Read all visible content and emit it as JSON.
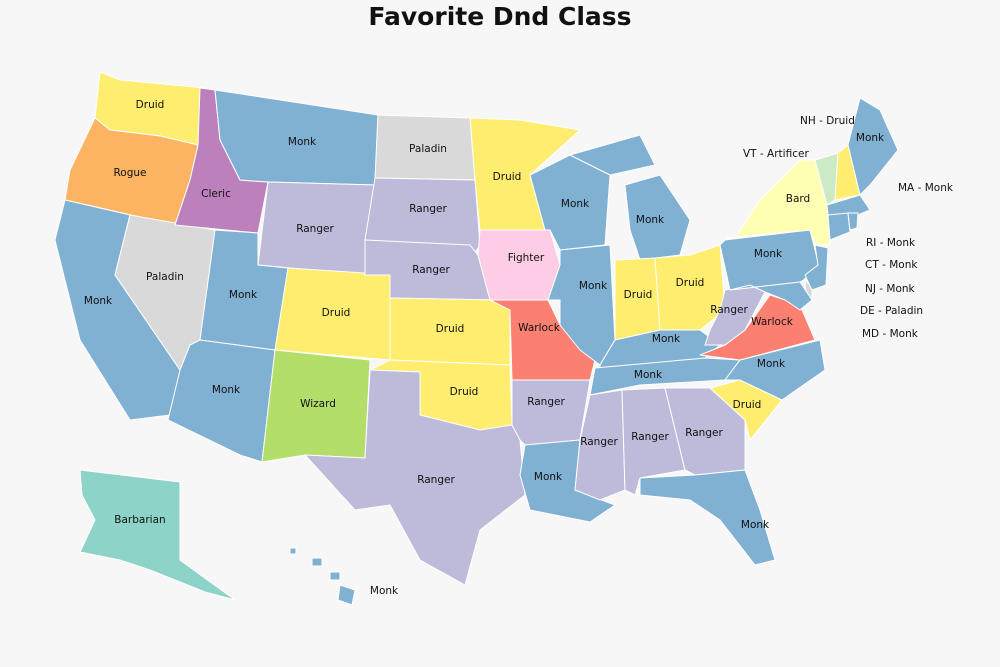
{
  "title": "Favorite Dnd Class",
  "class_colors": {
    "Monk": "#80b1d3",
    "Druid": "#ffed6f",
    "Ranger": "#bebada",
    "Paladin": "#d9d9d9",
    "Rogue": "#fdb462",
    "Cleric": "#bc80bd",
    "Fighter": "#fccde5",
    "Warlock": "#fb8072",
    "Wizard": "#b3de69",
    "Barbarian": "#8dd3c7",
    "Bard": "#ffffb3",
    "Artificer": "#ccebc5"
  },
  "states": [
    {
      "abbr": "WA",
      "class": "Druid"
    },
    {
      "abbr": "OR",
      "class": "Rogue"
    },
    {
      "abbr": "CA",
      "class": "Monk"
    },
    {
      "abbr": "NV",
      "class": "Paladin"
    },
    {
      "abbr": "ID",
      "class": "Cleric"
    },
    {
      "abbr": "MT",
      "class": "Monk"
    },
    {
      "abbr": "WY",
      "class": "Ranger"
    },
    {
      "abbr": "UT",
      "class": "Monk"
    },
    {
      "abbr": "CO",
      "class": "Druid"
    },
    {
      "abbr": "AZ",
      "class": "Monk"
    },
    {
      "abbr": "NM",
      "class": "Wizard"
    },
    {
      "abbr": "ND",
      "class": "Paladin"
    },
    {
      "abbr": "SD",
      "class": "Ranger"
    },
    {
      "abbr": "NE",
      "class": "Ranger"
    },
    {
      "abbr": "KS",
      "class": "Druid"
    },
    {
      "abbr": "OK",
      "class": "Druid"
    },
    {
      "abbr": "TX",
      "class": "Ranger"
    },
    {
      "abbr": "MN",
      "class": "Druid"
    },
    {
      "abbr": "IA",
      "class": "Fighter"
    },
    {
      "abbr": "MO",
      "class": "Warlock"
    },
    {
      "abbr": "AR",
      "class": "Ranger"
    },
    {
      "abbr": "LA",
      "class": "Monk"
    },
    {
      "abbr": "WI",
      "class": "Monk"
    },
    {
      "abbr": "IL",
      "class": "Monk"
    },
    {
      "abbr": "MI",
      "class": "Monk"
    },
    {
      "abbr": "IN",
      "class": "Druid"
    },
    {
      "abbr": "OH",
      "class": "Druid"
    },
    {
      "abbr": "KY",
      "class": "Monk"
    },
    {
      "abbr": "TN",
      "class": "Monk"
    },
    {
      "abbr": "MS",
      "class": "Ranger"
    },
    {
      "abbr": "AL",
      "class": "Ranger"
    },
    {
      "abbr": "GA",
      "class": "Ranger"
    },
    {
      "abbr": "FL",
      "class": "Monk"
    },
    {
      "abbr": "SC",
      "class": "Druid"
    },
    {
      "abbr": "NC",
      "class": "Monk"
    },
    {
      "abbr": "VA",
      "class": "Warlock"
    },
    {
      "abbr": "WV",
      "class": "Ranger"
    },
    {
      "abbr": "PA",
      "class": "Monk"
    },
    {
      "abbr": "NY",
      "class": "Bard"
    },
    {
      "abbr": "VT",
      "class": "Artificer"
    },
    {
      "abbr": "NH",
      "class": "Druid"
    },
    {
      "abbr": "ME",
      "class": "Monk"
    },
    {
      "abbr": "MA",
      "class": "Monk"
    },
    {
      "abbr": "CT",
      "class": "Monk"
    },
    {
      "abbr": "RI",
      "class": "Monk"
    },
    {
      "abbr": "NJ",
      "class": "Monk"
    },
    {
      "abbr": "DE",
      "class": "Paladin"
    },
    {
      "abbr": "MD",
      "class": "Monk"
    },
    {
      "abbr": "AK",
      "class": "Barbarian"
    },
    {
      "abbr": "HI",
      "class": "Monk"
    }
  ],
  "callouts": [
    "NH - Druid",
    "VT - Artificer",
    "MA - Monk",
    "RI - Monk",
    "CT - Monk",
    "NJ - Monk",
    "DE - Paladin",
    "MD - Monk"
  ]
}
